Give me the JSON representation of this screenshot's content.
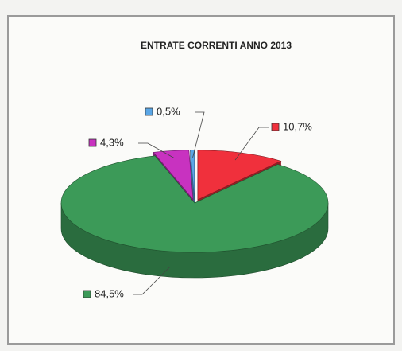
{
  "chart_data": {
    "type": "pie3d",
    "title": "ENTRATE CORRENTI ANNO 2013",
    "values": [
      10.7,
      84.5,
      4.3,
      0.5
    ],
    "value_labels": [
      "10,7%",
      "84,5%",
      "4,3%",
      "0,5%"
    ],
    "colors": [
      "#f0303c",
      "#3c9a58",
      "#c832c0",
      "#5aa6e6"
    ]
  }
}
